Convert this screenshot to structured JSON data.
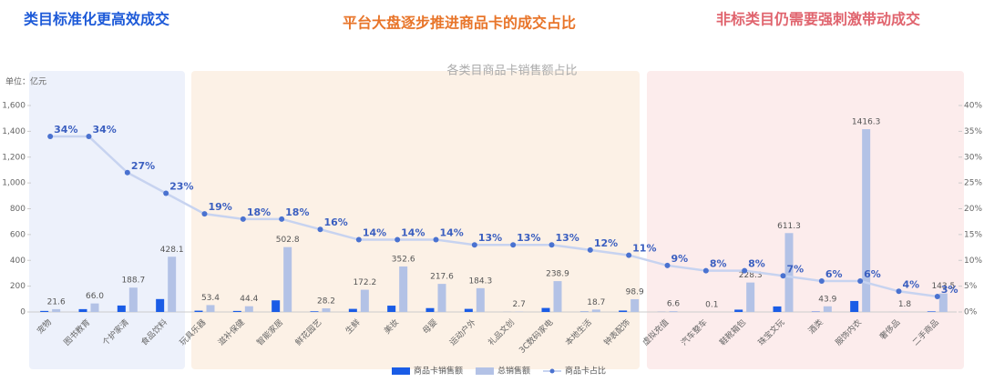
{
  "chart_data": {
    "type": "bar",
    "headlines": [
      "类目标准化更高效成交",
      "平台大盘逐步推进商品卡的成交占比",
      "非标类目仍需要强刺激带动成交"
    ],
    "title": "各类目商品卡销售额占比",
    "y_unit": "单位：亿元",
    "categories": [
      "宠物",
      "图书教育",
      "个护家清",
      "食品饮料",
      "玩具乐器",
      "滋补保健",
      "智能家居",
      "鲜花园艺",
      "生鲜",
      "美妆",
      "母婴",
      "运动户外",
      "礼品文创",
      "3C数码家电",
      "本地生活",
      "钟表配饰",
      "虚拟充值",
      "汽车整车",
      "鞋靴箱包",
      "珠宝文玩",
      "酒类",
      "服饰内衣",
      "奢侈品",
      "二手商品"
    ],
    "series": [
      {
        "name": "商品卡销售额",
        "color": "#1a5ce6",
        "type": "bar",
        "values": [
          8,
          22,
          50,
          100,
          10,
          8,
          90,
          5,
          24,
          49,
          30,
          24,
          0.4,
          31,
          2.2,
          11,
          0.6,
          0,
          18,
          43,
          2.6,
          85,
          0.1,
          4.3
        ]
      },
      {
        "name": "总销售额",
        "color": "#b3c2e6",
        "type": "bar",
        "values": [
          21.6,
          66,
          188.7,
          428.1,
          53.4,
          44.4,
          502.8,
          28.2,
          172.2,
          352.6,
          217.6,
          184.3,
          2.7,
          238.9,
          18.7,
          98.9,
          6.6,
          0.1,
          228.3,
          611.3,
          43.9,
          1416.3,
          1.8,
          143.5
        ],
        "value_labels": [
          "21.6",
          "66.0",
          "188.7",
          "428.1",
          "53.4",
          "44.4",
          "502.8",
          "28.2",
          "172.2",
          "352.6",
          "217.6",
          "184.3",
          "2.7",
          "238.9",
          "18.7",
          "98.9",
          "6.6",
          "0.1",
          "228.3",
          "611.3",
          "43.9",
          "1416.3",
          "1.8",
          "143.5"
        ]
      },
      {
        "name": "商品卡占比",
        "color": "#4a72d0",
        "type": "line",
        "axis": "y2",
        "values": [
          34,
          34,
          27,
          23,
          19,
          18,
          18,
          16,
          14,
          14,
          14,
          13,
          13,
          13,
          12,
          11,
          9,
          8,
          8,
          7,
          6,
          6,
          4,
          3
        ],
        "value_labels": [
          "34%",
          "34%",
          "27%",
          "23%",
          "19%",
          "18%",
          "18%",
          "16%",
          "14%",
          "14%",
          "14%",
          "13%",
          "13%",
          "13%",
          "12%",
          "11%",
          "9%",
          "8%",
          "8%",
          "7%",
          "6%",
          "6%",
          "4%",
          "3%"
        ]
      }
    ],
    "ylim": [
      0,
      1600
    ],
    "yticks": [
      0,
      200,
      400,
      600,
      800,
      {
        "value": 1000,
        "label": "1,000"
      },
      {
        "value": 1200,
        "label": "1,200"
      },
      {
        "value": 1400,
        "label": "1,400"
      },
      {
        "value": 1600,
        "label": "1,600"
      }
    ],
    "y2lim": [
      0,
      40
    ],
    "y2ticks": [
      {
        "value": 0,
        "label": "0%"
      },
      {
        "value": 5,
        "label": "5%"
      },
      {
        "value": 10,
        "label": "10%"
      },
      {
        "value": 15,
        "label": "15%"
      },
      {
        "value": 20,
        "label": "20%"
      },
      {
        "value": 25,
        "label": "25%"
      },
      {
        "value": 30,
        "label": "30%"
      },
      {
        "value": 35,
        "label": "35%"
      },
      {
        "value": 40,
        "label": "40%"
      }
    ]
  }
}
